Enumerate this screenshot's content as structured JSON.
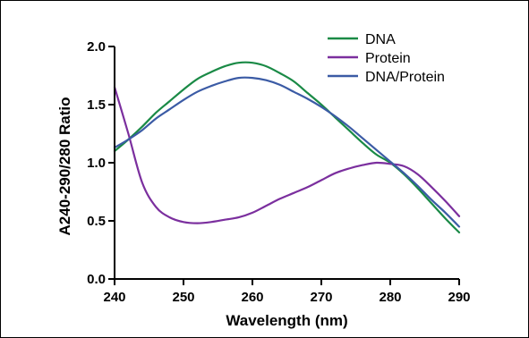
{
  "chart_data": {
    "type": "line",
    "xlabel": "Wavelength (nm)",
    "ylabel": "A240-290/280 Ratio",
    "xlim": [
      240,
      290
    ],
    "ylim": [
      0.0,
      2.0
    ],
    "x_ticks": [
      240,
      250,
      260,
      270,
      280,
      290
    ],
    "y_ticks": [
      0.0,
      0.5,
      1.0,
      1.5,
      2.0
    ],
    "x_tick_labels": [
      "240",
      "250",
      "260",
      "270",
      "280",
      "290"
    ],
    "y_tick_labels": [
      "0.0",
      "0.5",
      "1.0",
      "1.5",
      "2.0"
    ],
    "grid": false,
    "legend_position": "top-right",
    "x": [
      240,
      242,
      244,
      246,
      248,
      250,
      252,
      254,
      256,
      258,
      260,
      262,
      264,
      266,
      268,
      270,
      272,
      274,
      276,
      278,
      280,
      282,
      284,
      286,
      288,
      290
    ],
    "series": [
      {
        "name": "DNA",
        "color": "#1a8a46",
        "values": [
          1.1,
          1.2,
          1.31,
          1.43,
          1.53,
          1.63,
          1.72,
          1.78,
          1.83,
          1.86,
          1.86,
          1.83,
          1.77,
          1.7,
          1.6,
          1.5,
          1.39,
          1.28,
          1.17,
          1.07,
          1.0,
          0.9,
          0.78,
          0.65,
          0.52,
          0.4
        ]
      },
      {
        "name": "Protein",
        "color": "#7b2f9e",
        "values": [
          1.65,
          1.25,
          0.83,
          0.62,
          0.53,
          0.49,
          0.48,
          0.49,
          0.51,
          0.53,
          0.57,
          0.63,
          0.69,
          0.74,
          0.79,
          0.85,
          0.91,
          0.95,
          0.98,
          1.0,
          0.99,
          0.97,
          0.9,
          0.79,
          0.67,
          0.54
        ]
      },
      {
        "name": "DNA/Protein",
        "color": "#3b5ba5",
        "values": [
          1.13,
          1.2,
          1.28,
          1.38,
          1.46,
          1.54,
          1.61,
          1.66,
          1.7,
          1.73,
          1.73,
          1.71,
          1.67,
          1.61,
          1.55,
          1.48,
          1.4,
          1.31,
          1.21,
          1.11,
          1.01,
          0.91,
          0.8,
          0.68,
          0.57,
          0.45
        ]
      }
    ]
  }
}
